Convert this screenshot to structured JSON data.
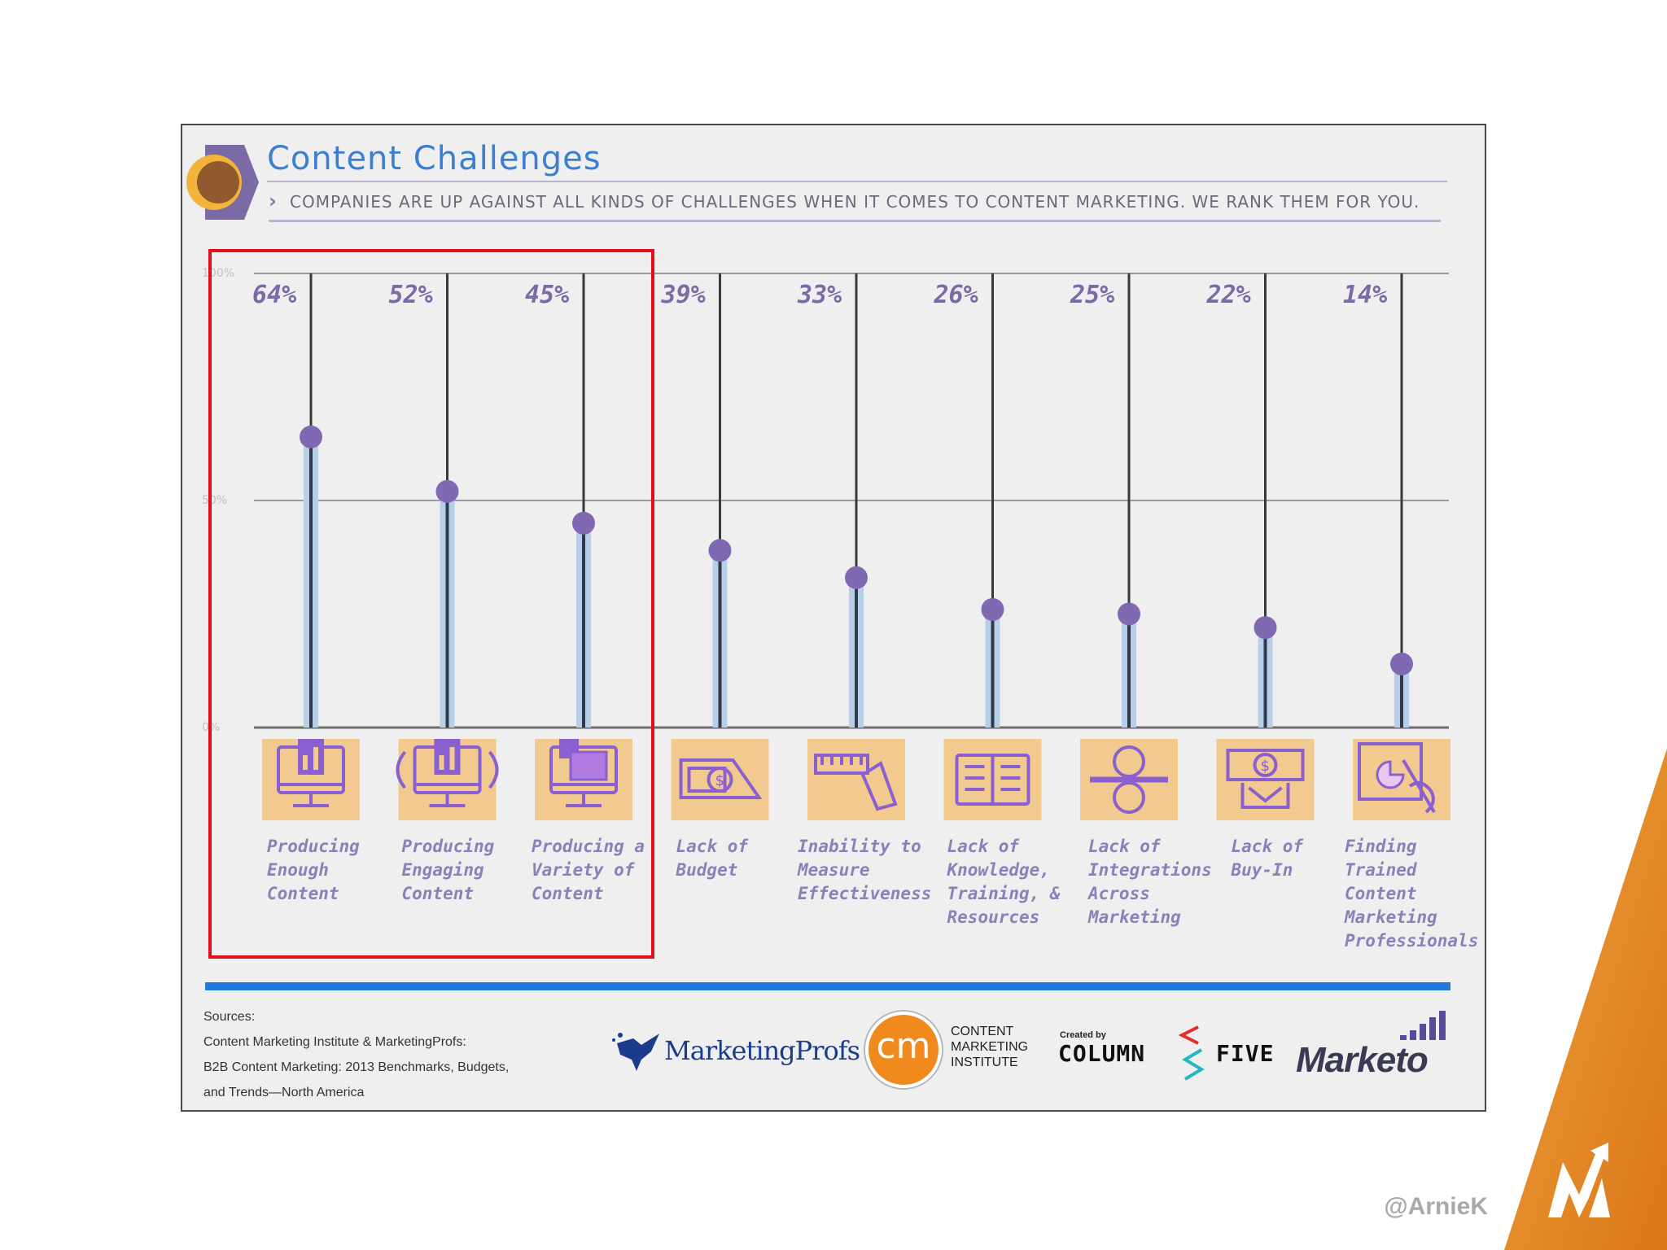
{
  "title": "Content Challenges",
  "subtitle": "COMPANIES ARE UP AGAINST ALL KINDS OF CHALLENGES WHEN IT COMES TO CONTENT MARKETING. WE RANK THEM FOR YOU.",
  "chart_data": {
    "type": "bar",
    "title": "Content Challenges",
    "ylim": [
      0,
      100
    ],
    "y_ticks": [
      "0%",
      "50%",
      "100%"
    ],
    "grid": true,
    "categories": [
      "Producing Enough Content",
      "Producing Engaging Content",
      "Producing a Variety of Content",
      "Lack of Budget",
      "Inability to Measure Effectiveness",
      "Lack of Knowledge, Training, & Resources",
      "Lack of Integrations Across Marketing",
      "Lack of Buy-In",
      "Finding Trained Content Marketing Professionals"
    ],
    "category_lines": [
      [
        "Producing",
        "Enough",
        "Content"
      ],
      [
        "Producing",
        "Engaging",
        "Content"
      ],
      [
        "Producing a",
        "Variety of",
        "Content"
      ],
      [
        "Lack of",
        "Budget"
      ],
      [
        "Inability to",
        "Measure",
        "Effectiveness"
      ],
      [
        "Lack of",
        "Knowledge,",
        "Training, &",
        "Resources"
      ],
      [
        "Lack of",
        "Integrations",
        "Across",
        "Marketing"
      ],
      [
        "Lack of",
        "Buy-In"
      ],
      [
        "Finding",
        "Trained",
        "Content",
        "Marketing",
        "Professionals"
      ]
    ],
    "values": [
      64,
      52,
      45,
      39,
      33,
      26,
      25,
      22,
      14
    ],
    "value_labels": [
      "64%",
      "52%",
      "45%",
      "39%",
      "33%",
      "26%",
      "25%",
      "22%",
      "14%"
    ],
    "icons": [
      "monitor-chart-icon",
      "monitor-chart-waves-icon",
      "monitor-windows-icon",
      "dollar-bill-icon",
      "ruler-icon",
      "book-icon",
      "split-circle-icon",
      "dollar-hands-icon",
      "pie-hand-icon"
    ],
    "highlighted_categories": [
      0,
      1,
      2
    ]
  },
  "sources": {
    "heading": "Sources:",
    "lines": [
      "Content Marketing Institute & MarketingProfs:",
      "B2B Content Marketing: 2013 Benchmarks, Budgets,",
      "and Trends—North America"
    ]
  },
  "logos": {
    "marketingprofs": "MarketingProfs",
    "cmi_mark": "cm",
    "cmi_text": [
      "CONTENT",
      "MARKETING",
      "INSTITUTE"
    ],
    "created_by": "Created by",
    "column": "COLUMN",
    "five": "FIVE",
    "marketo": "Marketo"
  },
  "watermark": "@ArnieK",
  "colors": {
    "accent_purple": "#7b6aa6",
    "marker_purple": "#8069b2",
    "bar_light_blue": "#b7cfe8",
    "icon_tile": "#f2c98e",
    "title_blue": "#3a7fd0",
    "highlight_red": "#e0101b",
    "brand_orange": "#e98a1e"
  }
}
